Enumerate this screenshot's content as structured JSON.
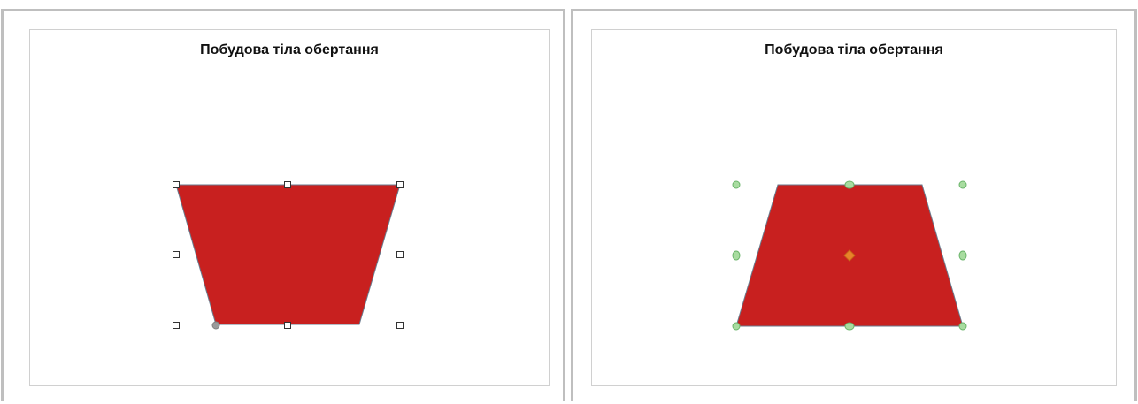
{
  "left_view": {
    "slide_title": "Побудова тіла обертання",
    "shape_color": "#c8201f",
    "shape_outline_color": "#6a7a8c",
    "handle_style": "square",
    "handle_fill": "#ffffff",
    "handle_stroke": "#333333"
  },
  "right_view": {
    "slide_title": "Побудова тіла обертання",
    "shape_color": "#c8201f",
    "shape_outline_color": "#6a7a8c",
    "handle_style": "round",
    "handle_fill": "#a8dca0",
    "handle_stroke": "#6ab46a",
    "rotation_pivot_color": "#e8822a"
  }
}
